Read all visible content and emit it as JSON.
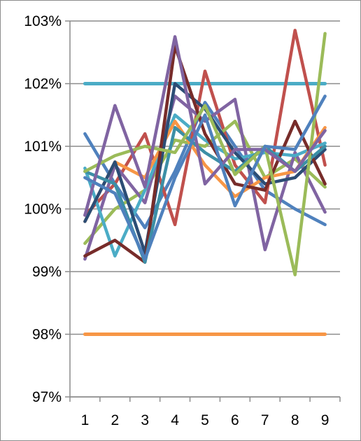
{
  "chart_data": {
    "type": "line",
    "title": "",
    "xlabel": "",
    "ylabel": "",
    "categories": [
      "1",
      "2",
      "3",
      "4",
      "5",
      "6",
      "7",
      "8",
      "9"
    ],
    "ylim": [
      97,
      103
    ],
    "y_ticks": [
      "97%",
      "98%",
      "99%",
      "100%",
      "101%",
      "102%",
      "103%"
    ],
    "grid": "horizontal",
    "legend": "none",
    "reference_lines": [
      {
        "value": 102,
        "color": "#4bacc6"
      },
      {
        "value": 98,
        "color": "#f79646"
      }
    ],
    "series": [
      {
        "color": "#4f81bd",
        "values": [
          101.2,
          100.4,
          99.7,
          100.6,
          101.7,
          101.0,
          100.3,
          100.0,
          99.75
        ]
      },
      {
        "color": "#c0504d",
        "values": [
          99.9,
          100.4,
          101.2,
          99.75,
          102.2,
          100.7,
          100.1,
          102.85,
          100.7
        ]
      },
      {
        "color": "#9bbb59",
        "values": [
          99.45,
          100.0,
          100.3,
          101.1,
          101.0,
          101.4,
          100.5,
          100.8,
          100.35
        ]
      },
      {
        "color": "#8064a2",
        "values": [
          99.2,
          100.7,
          100.1,
          101.8,
          101.4,
          101.75,
          99.35,
          100.9,
          99.95
        ]
      },
      {
        "color": "#4bacc6",
        "values": [
          100.65,
          99.25,
          100.3,
          101.5,
          101.1,
          100.8,
          100.9,
          100.85,
          101.05
        ]
      },
      {
        "color": "#f79646",
        "values": [
          99.8,
          100.75,
          100.5,
          101.4,
          100.7,
          100.2,
          100.5,
          100.6,
          101.3
        ]
      },
      {
        "color": "#2c4d75",
        "values": [
          99.8,
          100.75,
          99.3,
          102.0,
          101.6,
          100.9,
          100.4,
          100.5,
          100.95
        ]
      },
      {
        "color": "#772c2a",
        "values": [
          99.25,
          99.5,
          99.15,
          102.6,
          101.2,
          100.4,
          100.3,
          101.4,
          100.4
        ]
      },
      {
        "color": "#3c8fa6",
        "values": [
          100.6,
          100.4,
          99.15,
          101.3,
          100.9,
          100.6,
          101.0,
          100.6,
          101.0
        ]
      },
      {
        "color": "#9bbb59",
        "values": [
          100.6,
          100.85,
          101.0,
          100.9,
          101.65,
          100.55,
          101.0,
          98.95,
          102.8
        ]
      },
      {
        "color": "#8064a2",
        "values": [
          99.9,
          101.65,
          100.35,
          102.75,
          100.4,
          100.95,
          100.95,
          100.6,
          101.25
        ]
      },
      {
        "color": "#4f81bd",
        "values": [
          100.5,
          100.25,
          99.2,
          100.5,
          101.5,
          100.05,
          101.0,
          100.95,
          101.8
        ]
      }
    ]
  }
}
